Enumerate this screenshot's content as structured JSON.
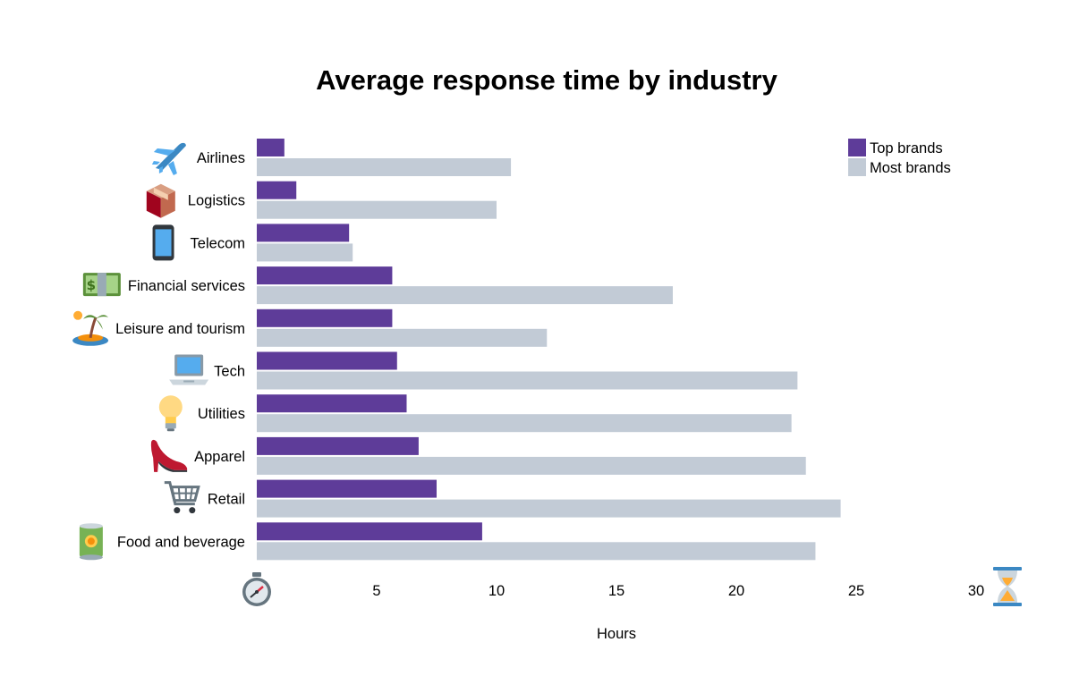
{
  "chart_data": {
    "type": "bar",
    "orientation": "horizontal",
    "title": "Average response time by industry",
    "xlabel": "Hours",
    "ylabel": "",
    "xlim": [
      0,
      30
    ],
    "xticks": [
      5,
      10,
      15,
      20,
      25,
      30
    ],
    "grid": false,
    "legend_position": "top-right",
    "categories": [
      "Airlines",
      "Logistics",
      "Telecom",
      "Financial services",
      "Leisure and tourism",
      "Tech",
      "Utilities",
      "Apparel",
      "Retail",
      "Food and beverage"
    ],
    "category_icons": [
      "airplane-icon",
      "package-icon",
      "mobile-phone-icon",
      "banknote-icon",
      "desert-island-icon",
      "laptop-icon",
      "light-bulb-icon",
      "high-heel-icon",
      "shopping-cart-icon",
      "canned-food-icon"
    ],
    "axis_icons": [
      "stopwatch-icon",
      "hourglass-icon"
    ],
    "series": [
      {
        "name": "Top brands",
        "color": "#5e3c99",
        "values": [
          1.15,
          1.65,
          3.85,
          5.65,
          5.65,
          5.85,
          6.25,
          6.75,
          7.5,
          9.4
        ]
      },
      {
        "name": "Most brands",
        "color": "#c2cbd6",
        "values": [
          10.6,
          10.0,
          4.0,
          17.35,
          12.1,
          22.55,
          22.3,
          22.9,
          24.35,
          23.3
        ]
      }
    ]
  }
}
